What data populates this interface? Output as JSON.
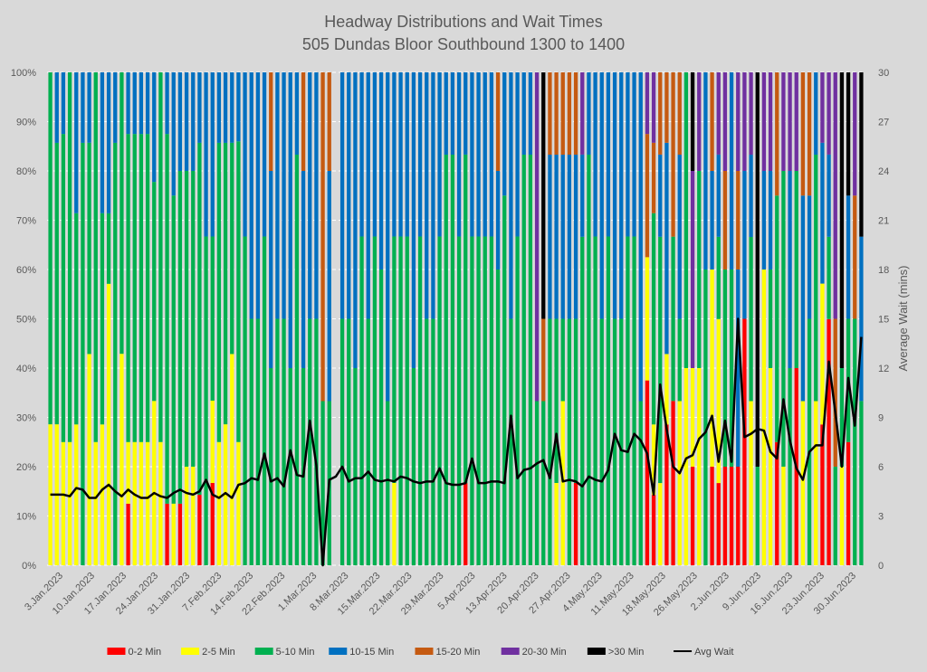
{
  "chart_data": {
    "type": "bar",
    "stacked": true,
    "percent_stacked": true,
    "title": "Headway Distributions and Wait Times",
    "subtitle": "505 Dundas  Bloor Southbound 1300 to 1400",
    "xlabel": "",
    "ylabel_left": "",
    "ylabel_right": "Average Wait (mins)",
    "ylim_left": [
      0,
      100
    ],
    "ylim_right": [
      0,
      30
    ],
    "y_ticks_left": [
      "0%",
      "10%",
      "20%",
      "30%",
      "40%",
      "50%",
      "60%",
      "70%",
      "80%",
      "90%",
      "100%"
    ],
    "y_ticks_right": [
      "0",
      "3",
      "6",
      "9",
      "12",
      "15",
      "18",
      "21",
      "24",
      "27",
      "30"
    ],
    "x_tick_labels": [
      "3.Jan.2023",
      "10.Jan.2023",
      "17.Jan.2023",
      "24.Jan.2023",
      "31.Jan.2023",
      "7.Feb.2023",
      "14.Feb.2023",
      "22.Feb.2023",
      "1.Mar.2023",
      "8.Mar.2023",
      "15.Mar.2023",
      "22.Mar.2023",
      "29.Mar.2023",
      "5.Apr.2023",
      "13.Apr.2023",
      "20.Apr.2023",
      "27.Apr.2023",
      "4.May.2023",
      "11.May.2023",
      "18.May.2023",
      "26.May.2023",
      "2.Jun.2023",
      "9.Jun.2023",
      "16.Jun.2023",
      "23.Jun.2023",
      "30.Jun.2023"
    ],
    "grid": true,
    "legend_position": "bottom",
    "series_names": [
      "0-2 Min",
      "2-5 Min",
      "5-10 Min",
      "10-15 Min",
      "15-20 Min",
      "20-30 Min",
      ">30 Min"
    ],
    "series_colors": [
      "#ff0000",
      "#ffff00",
      "#00b050",
      "#0070c0",
      "#c55a11",
      "#7030a0",
      "#000000"
    ],
    "line_series": {
      "name": "Avg Wait",
      "color": "#000000"
    },
    "bars": [
      [
        0,
        28.6,
        71.4,
        0,
        0,
        0,
        0
      ],
      [
        0,
        28.6,
        57.1,
        14.3,
        0,
        0,
        0
      ],
      [
        0,
        25,
        62.5,
        12.5,
        0,
        0,
        0
      ],
      [
        0,
        25,
        75,
        0,
        0,
        0,
        0
      ],
      [
        0,
        28.6,
        42.9,
        28.6,
        0,
        0,
        0
      ],
      [
        0,
        0,
        85.7,
        14.3,
        0,
        0,
        0
      ],
      [
        0,
        42.9,
        42.9,
        14.3,
        0,
        0,
        0
      ],
      [
        0,
        25,
        75,
        0,
        0,
        0,
        0
      ],
      [
        0,
        28.6,
        42.9,
        28.6,
        0,
        0,
        0
      ],
      [
        0,
        57.1,
        14.3,
        28.6,
        0,
        0,
        0
      ],
      [
        0,
        0,
        85.7,
        14.3,
        0,
        0,
        0
      ],
      [
        0,
        42.9,
        57.1,
        0,
        0,
        0,
        0
      ],
      [
        12.5,
        12.5,
        62.5,
        12.5,
        0,
        0,
        0
      ],
      [
        0,
        25,
        62.5,
        12.5,
        0,
        0,
        0
      ],
      [
        0,
        25,
        62.5,
        12.5,
        0,
        0,
        0
      ],
      [
        0,
        25,
        62.5,
        12.5,
        0,
        0,
        0
      ],
      [
        0,
        33.3,
        44.4,
        22.2,
        0,
        0,
        0
      ],
      [
        0,
        25,
        75,
        0,
        0,
        0,
        0
      ],
      [
        12.5,
        0,
        75,
        12.5,
        0,
        0,
        0
      ],
      [
        0,
        12.5,
        62.5,
        25,
        0,
        0,
        0
      ],
      [
        12.5,
        0,
        67.5,
        20,
        0,
        0,
        0
      ],
      [
        0,
        20,
        60,
        20,
        0,
        0,
        0
      ],
      [
        0,
        20,
        60,
        20,
        0,
        0,
        0
      ],
      [
        14.3,
        0,
        71.4,
        14.3,
        0,
        0,
        0
      ],
      [
        0,
        0,
        66.7,
        33.3,
        0,
        0,
        0
      ],
      [
        16.7,
        16.7,
        33.3,
        33.3,
        0,
        0,
        0
      ],
      [
        0,
        25,
        60.7,
        14.3,
        0,
        0,
        0
      ],
      [
        0,
        28.6,
        57.1,
        14.3,
        0,
        0,
        0
      ],
      [
        0,
        42.9,
        42.9,
        14.3,
        0,
        0,
        0
      ],
      [
        0,
        25,
        61,
        14,
        0,
        0,
        0
      ],
      [
        0,
        0,
        66.7,
        33.3,
        0,
        0,
        0
      ],
      [
        0,
        0,
        50,
        50,
        0,
        0,
        0
      ],
      [
        0,
        0,
        50,
        50,
        0,
        0,
        0
      ],
      [
        0,
        0,
        66.7,
        33.3,
        0,
        0,
        0
      ],
      [
        0,
        0,
        40,
        40,
        20,
        0,
        0
      ],
      [
        0,
        0,
        50,
        50,
        0,
        0,
        0
      ],
      [
        0,
        0,
        50,
        50,
        0,
        0,
        0
      ],
      [
        0,
        0,
        40,
        60,
        0,
        0,
        0
      ],
      [
        0,
        0,
        83.3,
        16.7,
        0,
        0,
        0
      ],
      [
        0,
        0,
        40,
        40,
        20,
        0,
        0
      ],
      [
        0,
        0,
        50,
        50,
        0,
        0,
        0
      ],
      [
        0,
        0,
        50,
        50,
        0,
        0,
        0
      ],
      [
        0,
        0,
        33.3,
        0,
        66.7,
        0,
        0
      ],
      [
        0,
        0,
        33.3,
        46.7,
        20,
        0,
        0
      ],
      [
        0,
        0,
        0,
        0,
        0,
        0,
        0
      ],
      [
        0,
        0,
        50,
        50,
        0,
        0,
        0
      ],
      [
        0,
        0,
        50,
        50,
        0,
        0,
        0
      ],
      [
        0,
        0,
        40,
        60,
        0,
        0,
        0
      ],
      [
        0,
        0,
        66.7,
        33.3,
        0,
        0,
        0
      ],
      [
        0,
        0,
        50,
        50,
        0,
        0,
        0
      ],
      [
        0,
        0,
        66.7,
        33.3,
        0,
        0,
        0
      ],
      [
        0,
        0,
        60,
        40,
        0,
        0,
        0
      ],
      [
        0,
        0,
        33.3,
        66.7,
        0,
        0,
        0
      ],
      [
        0,
        16.7,
        50,
        33.3,
        0,
        0,
        0
      ],
      [
        0,
        0,
        66.7,
        33.3,
        0,
        0,
        0
      ],
      [
        0,
        0,
        66.7,
        33.3,
        0,
        0,
        0
      ],
      [
        0,
        0,
        40,
        60,
        0,
        0,
        0
      ],
      [
        0,
        0,
        66.7,
        33.3,
        0,
        0,
        0
      ],
      [
        0,
        0,
        50,
        50,
        0,
        0,
        0
      ],
      [
        0,
        0,
        50,
        50,
        0,
        0,
        0
      ],
      [
        0,
        0,
        66.7,
        33.3,
        0,
        0,
        0
      ],
      [
        0,
        0,
        83.3,
        16.7,
        0,
        0,
        0
      ],
      [
        0,
        0,
        83.3,
        16.7,
        0,
        0,
        0
      ],
      [
        0,
        0,
        66.7,
        33.3,
        0,
        0,
        0
      ],
      [
        16.7,
        0,
        66.7,
        16.7,
        0,
        0,
        0
      ],
      [
        0,
        0,
        66.7,
        33.3,
        0,
        0,
        0
      ],
      [
        0,
        0,
        66.7,
        33.3,
        0,
        0,
        0
      ],
      [
        0,
        0,
        66.7,
        33.3,
        0,
        0,
        0
      ],
      [
        0,
        0,
        66.7,
        33.3,
        0,
        0,
        0
      ],
      [
        0,
        0,
        60,
        20,
        20,
        0,
        0
      ],
      [
        0,
        0,
        75,
        25,
        0,
        0,
        0
      ],
      [
        0,
        0,
        50,
        50,
        0,
        0,
        0
      ],
      [
        0,
        0,
        66.7,
        33.3,
        0,
        0,
        0
      ],
      [
        0,
        0,
        83.3,
        16.7,
        0,
        0,
        0
      ],
      [
        0,
        0,
        83.3,
        16.7,
        0,
        0,
        0
      ],
      [
        0,
        0,
        33.3,
        0,
        0,
        66.7,
        0
      ],
      [
        0,
        0,
        33.3,
        0,
        16.7,
        0,
        50
      ],
      [
        0,
        0,
        50,
        33.3,
        16.7,
        0,
        0
      ],
      [
        0,
        16.7,
        33.3,
        33.3,
        16.7,
        0,
        0
      ],
      [
        0,
        33.3,
        16.7,
        33.3,
        16.7,
        0,
        0
      ],
      [
        0,
        0,
        50,
        33.3,
        16.7,
        0,
        0
      ],
      [
        16.7,
        0,
        33.3,
        33.3,
        16.7,
        0,
        0
      ],
      [
        0,
        0,
        66.7,
        16.7,
        0,
        16.7,
        0
      ],
      [
        0,
        0,
        83.3,
        16.7,
        0,
        0,
        0
      ],
      [
        0,
        0,
        66.7,
        33.3,
        0,
        0,
        0
      ],
      [
        0,
        0,
        50,
        50,
        0,
        0,
        0
      ],
      [
        0,
        0,
        66.7,
        33.3,
        0,
        0,
        0
      ],
      [
        0,
        0,
        50,
        50,
        0,
        0,
        0
      ],
      [
        0,
        0,
        50,
        50,
        0,
        0,
        0
      ],
      [
        0,
        0,
        66.7,
        33.3,
        0,
        0,
        0
      ],
      [
        0,
        0,
        66.7,
        33.3,
        0,
        0,
        0
      ],
      [
        0,
        0,
        33.3,
        66.7,
        0,
        0,
        0
      ],
      [
        37.5,
        25,
        0,
        0,
        25,
        12.5,
        0
      ],
      [
        14.3,
        14.3,
        42.9,
        0,
        14.3,
        14.3,
        0
      ],
      [
        0,
        16.7,
        50,
        16.7,
        16.7,
        0,
        0
      ],
      [
        28.6,
        14.3,
        0,
        42.9,
        14.3,
        0,
        0
      ],
      [
        33.3,
        0,
        33.3,
        0,
        33.3,
        0,
        0
      ],
      [
        0,
        33.3,
        16.7,
        33.3,
        16.7,
        0,
        0
      ],
      [
        0,
        40,
        60,
        0,
        0,
        0,
        0
      ],
      [
        20,
        20,
        0,
        0,
        0,
        40,
        20
      ],
      [
        0,
        40,
        40,
        0,
        0,
        20,
        0
      ],
      [
        0,
        0,
        60,
        40,
        0,
        0,
        0
      ],
      [
        20,
        40,
        0,
        20,
        20,
        0,
        0
      ],
      [
        16.7,
        33.3,
        16.7,
        16.7,
        0,
        16.7,
        0
      ],
      [
        20,
        0,
        40,
        0,
        20,
        20,
        0
      ],
      [
        20,
        0,
        40,
        40,
        0,
        0,
        0
      ],
      [
        20,
        0,
        0,
        40,
        20,
        20,
        0
      ],
      [
        50,
        0,
        0,
        30,
        0,
        20,
        0
      ],
      [
        0,
        33.3,
        33.3,
        16.7,
        0,
        16.7,
        0
      ],
      [
        0,
        0,
        20,
        0,
        0,
        0,
        80
      ],
      [
        0,
        60,
        0,
        20,
        0,
        20,
        0
      ],
      [
        0,
        40,
        20,
        20,
        0,
        20,
        0
      ],
      [
        25,
        0,
        50,
        0,
        25,
        0,
        0
      ],
      [
        0,
        20,
        60,
        0,
        0,
        20,
        0
      ],
      [
        0,
        0,
        40,
        40,
        0,
        20,
        0
      ],
      [
        40,
        0,
        40,
        0,
        0,
        20,
        0
      ],
      [
        0,
        33.3,
        0,
        41.7,
        25,
        0,
        0
      ],
      [
        0,
        0,
        50,
        25,
        25,
        0,
        0
      ],
      [
        0,
        33.3,
        50,
        16.7,
        0,
        0,
        0
      ],
      [
        28.6,
        28.6,
        0,
        28.6,
        0,
        14.3,
        0
      ],
      [
        50,
        0,
        16.7,
        16.7,
        0,
        16.7,
        0
      ],
      [
        0,
        0,
        20,
        0,
        30,
        50,
        0
      ],
      [
        0,
        20,
        20,
        0,
        0,
        0,
        60
      ],
      [
        25,
        0,
        25,
        25,
        0,
        0,
        25
      ],
      [
        0,
        0,
        50,
        0,
        25,
        25,
        0
      ],
      [
        0,
        0,
        33.3,
        33.3,
        0,
        0,
        33.3
      ]
    ],
    "avg_wait": [
      4.3,
      4.3,
      4.3,
      4.2,
      4.7,
      4.6,
      4.1,
      4.1,
      4.6,
      4.9,
      4.5,
      4.2,
      4.6,
      4.3,
      4.1,
      4.1,
      4.4,
      4.2,
      4.1,
      4.4,
      4.6,
      4.4,
      4.3,
      4.5,
      5.2,
      4.3,
      4.1,
      4.4,
      4.1,
      4.9,
      5.0,
      5.3,
      5.2,
      6.8,
      5.1,
      5.3,
      4.8,
      7.0,
      5.5,
      5.4,
      8.8,
      6.1,
      0.0,
      5.2,
      5.4,
      6.0,
      5.1,
      5.3,
      5.3,
      5.7,
      5.2,
      5.1,
      5.2,
      5.1,
      5.4,
      5.3,
      5.1,
      5.0,
      5.1,
      5.1,
      5.9,
      5.0,
      4.9,
      4.9,
      5.0,
      6.5,
      5.0,
      5.0,
      5.1,
      5.1,
      5.0,
      9.1,
      5.3,
      5.8,
      5.9,
      6.2,
      6.4,
      5.3,
      8.0,
      5.1,
      5.2,
      5.1,
      4.8,
      5.4,
      5.2,
      5.1,
      5.8,
      8.0,
      7.0,
      6.9,
      8.0,
      7.6,
      6.8,
      4.3,
      11.0,
      8.3,
      6.0,
      5.6,
      6.5,
      6.7,
      7.7,
      8.1,
      9.1,
      6.3,
      8.8,
      6.3,
      15.0,
      7.8,
      8.0,
      8.3,
      8.2,
      6.9,
      6.5,
      10.1,
      7.6,
      5.9,
      5.2,
      6.9,
      7.3,
      7.3,
      12.4,
      9.3,
      6.0,
      11.4,
      8.5,
      13.9
    ]
  },
  "legend": {
    "items": [
      "0-2 Min",
      "2-5 Min",
      "5-10 Min",
      "10-15 Min",
      "15-20 Min",
      "20-30 Min",
      ">30 Min",
      "Avg Wait"
    ]
  }
}
